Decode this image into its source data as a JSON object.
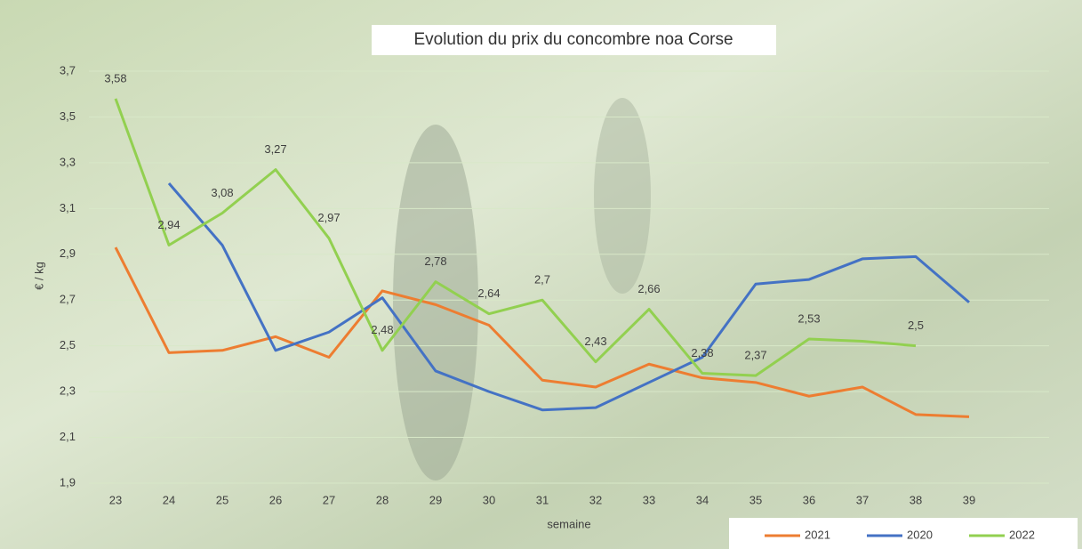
{
  "chart_data": {
    "type": "line",
    "title": "Evolution du prix du concombre noa Corse",
    "x_label": "semaine",
    "y_label": "€ / kg",
    "categories": [
      "23",
      "24",
      "25",
      "26",
      "27",
      "28",
      "29",
      "30",
      "31",
      "32",
      "33",
      "34",
      "35",
      "36",
      "37",
      "38",
      "39"
    ],
    "ylim": [
      1.9,
      3.7
    ],
    "yticks": [
      {
        "value": 1.9,
        "label": "1,9"
      },
      {
        "value": 2.1,
        "label": "2,1"
      },
      {
        "value": 2.3,
        "label": "2,3"
      },
      {
        "value": 2.5,
        "label": "2,5"
      },
      {
        "value": 2.7,
        "label": "2,7"
      },
      {
        "value": 2.9,
        "label": "2,9"
      },
      {
        "value": 3.1,
        "label": "3,1"
      },
      {
        "value": 3.3,
        "label": "3,3"
      },
      {
        "value": 3.5,
        "label": "3,5"
      },
      {
        "value": 3.7,
        "label": "3,7"
      }
    ],
    "grid": true,
    "legend": "bottom-right",
    "series": [
      {
        "name": "2021",
        "color": "#ed7d31",
        "values": [
          2.93,
          2.47,
          2.48,
          2.54,
          2.45,
          2.74,
          2.68,
          2.59,
          2.35,
          2.32,
          2.42,
          2.36,
          2.34,
          2.28,
          2.32,
          2.2,
          2.19
        ]
      },
      {
        "name": "2020",
        "color": "#4472c4",
        "values": [
          null,
          3.21,
          2.94,
          2.48,
          2.56,
          2.71,
          2.39,
          2.3,
          2.22,
          2.23,
          2.34,
          2.45,
          2.77,
          2.79,
          2.88,
          2.89,
          2.69
        ]
      },
      {
        "name": "2022",
        "color": "#92d050",
        "values": [
          3.58,
          2.94,
          3.08,
          3.27,
          2.97,
          2.48,
          2.78,
          2.64,
          2.7,
          2.43,
          2.66,
          2.38,
          2.37,
          2.53,
          2.52,
          2.5,
          null
        ],
        "value_labels": [
          "3,58",
          "2,94",
          "3,08",
          "3,27",
          "2,97",
          "2,48",
          "2,78",
          "2,64",
          "2,7",
          "2,43",
          "2,66",
          "2,38",
          "2,37",
          "2,53",
          null,
          "2,5",
          null
        ]
      }
    ]
  }
}
